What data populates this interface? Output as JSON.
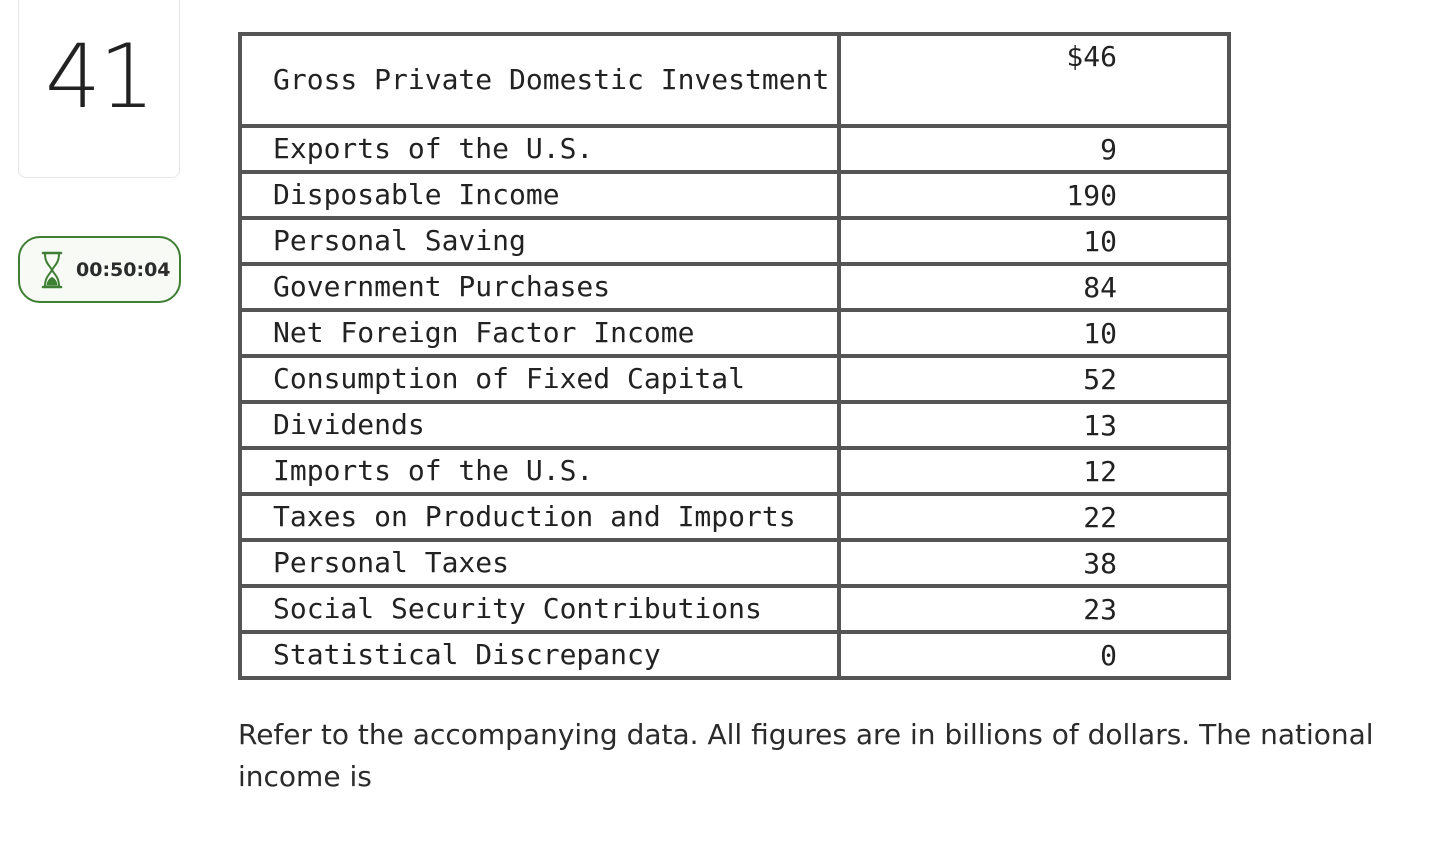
{
  "question_number": "41",
  "timer": {
    "icon": "hourglass-icon",
    "value": "00:50:04",
    "color": "#3f7f33"
  },
  "data_table": {
    "rows": [
      {
        "label": "Gross Private Domestic Investment",
        "value": "$46"
      },
      {
        "label": "Exports of the U.S.",
        "value": "9"
      },
      {
        "label": "Disposable Income",
        "value": "190"
      },
      {
        "label": "Personal Saving",
        "value": "10"
      },
      {
        "label": "Government Purchases",
        "value": "84"
      },
      {
        "label": "Net Foreign Factor Income",
        "value": "10"
      },
      {
        "label": "Consumption of Fixed Capital",
        "value": "52"
      },
      {
        "label": "Dividends",
        "value": "13"
      },
      {
        "label": "Imports of the U.S.",
        "value": "12"
      },
      {
        "label": "Taxes on Production and Imports",
        "value": "22"
      },
      {
        "label": "Personal Taxes",
        "value": "38"
      },
      {
        "label": "Social Security Contributions",
        "value": "23"
      },
      {
        "label": "Statistical Discrepancy",
        "value": "0"
      }
    ]
  },
  "question_text": "Refer to the accompanying data. All figures are in billions of dollars. The national income is"
}
